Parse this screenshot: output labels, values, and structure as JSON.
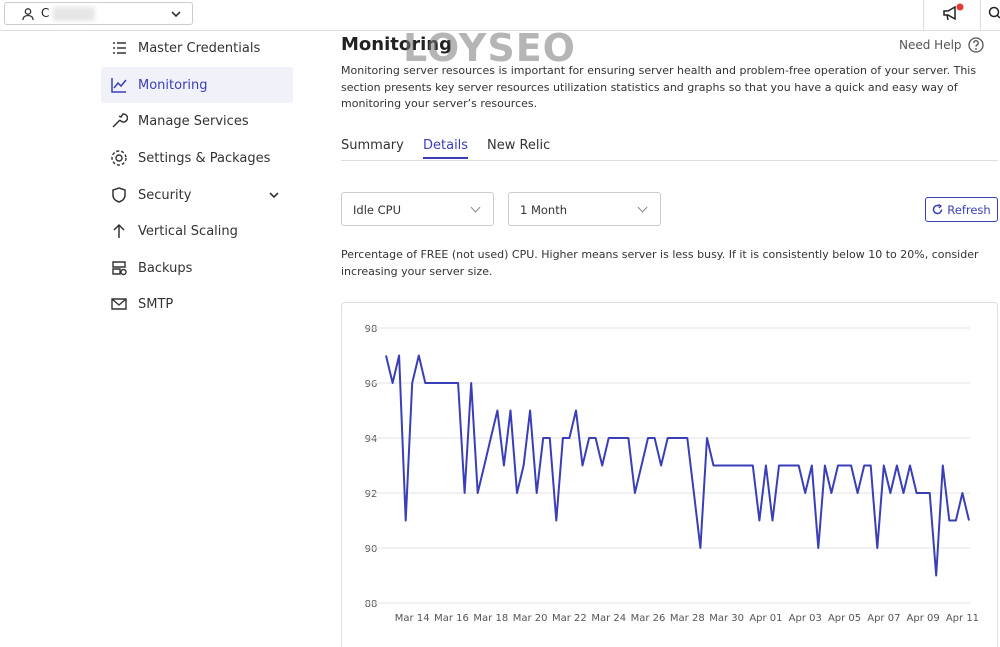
{
  "topbar": {
    "account": "C"
  },
  "sidebar": {
    "items": [
      "Master Credentials",
      "Monitoring",
      "Manage Services",
      "Settings & Packages",
      "Security",
      "Vertical Scaling",
      "Backups",
      "SMTP"
    ]
  },
  "main": {
    "title": "Monitoring",
    "watermark": "LOYSEO",
    "help": "Need Help",
    "description": "Monitoring server resources is important for ensuring server health and problem-free operation of your server. This section presents key server resources utilization statistics and graphs so that you have a quick and easy way of monitoring your server’s resources.",
    "tabs": [
      "Summary",
      "Details",
      "New Relic"
    ],
    "metric_select": "Idle CPU",
    "period_select": "1 Month",
    "refresh": "Refresh",
    "chart_description": "Percentage of FREE (not used) CPU. Higher means server is less busy. If it is consistently below 10 to 20%, consider increasing your server size."
  },
  "chart_data": {
    "type": "line",
    "color": "#3a3fb8",
    "grid": true,
    "categories": [
      null,
      null,
      null,
      null,
      "Mar 14",
      null,
      null,
      null,
      null,
      null,
      "Mar 16",
      null,
      null,
      null,
      null,
      null,
      "Mar 18",
      null,
      null,
      null,
      null,
      null,
      "Mar 20",
      null,
      null,
      null,
      null,
      null,
      "Mar 22",
      null,
      null,
      null,
      null,
      null,
      "Mar 24",
      null,
      null,
      null,
      null,
      null,
      "Mar 26",
      null,
      null,
      null,
      null,
      null,
      "Mar 28",
      null,
      null,
      null,
      null,
      null,
      "Mar 30",
      null,
      null,
      null,
      null,
      null,
      "Apr 01",
      null,
      null,
      null,
      null,
      null,
      "Apr 03",
      null,
      null,
      null,
      null,
      null,
      "Apr 05",
      null,
      null,
      null,
      null,
      null,
      "Apr 07",
      null,
      null,
      null,
      null,
      null,
      "Apr 09",
      null,
      null,
      null,
      null,
      null,
      "Apr 11",
      null
    ],
    "values": [
      97,
      96,
      97,
      91,
      96,
      97,
      96,
      96,
      96,
      96,
      96,
      96,
      92,
      96,
      92,
      93,
      94,
      95,
      93,
      95,
      92,
      93,
      95,
      92,
      94,
      94,
      91,
      94,
      94,
      95,
      93,
      94,
      94,
      93,
      94,
      94,
      94,
      94,
      92,
      93,
      94,
      94,
      93,
      94,
      94,
      94,
      94,
      92,
      90,
      94,
      93,
      93,
      93,
      93,
      93,
      93,
      93,
      91,
      93,
      91,
      93,
      93,
      93,
      93,
      92,
      93,
      90,
      93,
      92,
      93,
      93,
      93,
      92,
      93,
      93,
      90,
      93,
      92,
      93,
      92,
      93,
      92,
      92,
      92,
      89,
      93,
      91,
      91,
      92,
      91
    ],
    "ylim": [
      88,
      98
    ],
    "yticks": [
      88,
      90,
      92,
      94,
      96,
      98
    ]
  }
}
